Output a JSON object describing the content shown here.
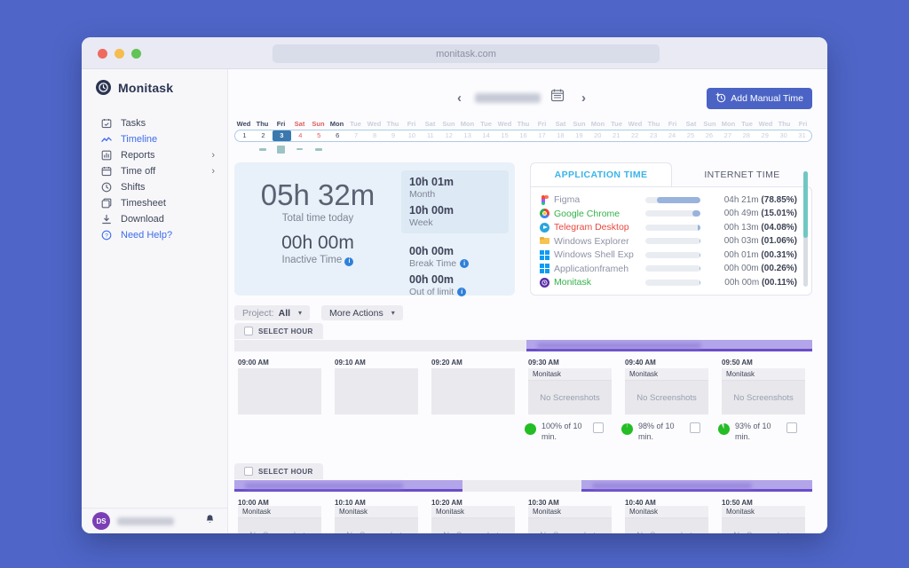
{
  "browser": {
    "url": "monitask.com"
  },
  "colors": {
    "accent_blue": "#4b63c5",
    "purple_bar": "#b3a5e9",
    "purple_border": "#6a4ec6",
    "green_activity": "#24bd24",
    "teal_scrollbar": "#6fc7c3",
    "tab_active_blue": "#3ab4e8",
    "selected_day_blue": "#3a78ae",
    "weekend_red": "#e15b5b",
    "avatar_purple": "#7b3fb5"
  },
  "sidebar": {
    "logo": "Monitask",
    "items": [
      {
        "label": "Tasks",
        "icon": "tasks-icon",
        "active": false,
        "chevron": false,
        "accent": false
      },
      {
        "label": "Timeline",
        "icon": "timeline-icon",
        "active": true,
        "chevron": false,
        "accent": false
      },
      {
        "label": "Reports",
        "icon": "reports-icon",
        "active": false,
        "chevron": true,
        "accent": false
      },
      {
        "label": "Time off",
        "icon": "timeoff-icon",
        "active": false,
        "chevron": true,
        "accent": false
      },
      {
        "label": "Shifts",
        "icon": "shifts-icon",
        "active": false,
        "chevron": false,
        "accent": false
      },
      {
        "label": "Timesheet",
        "icon": "timesheet-icon",
        "active": false,
        "chevron": false,
        "accent": false
      },
      {
        "label": "Download",
        "icon": "download-icon",
        "active": false,
        "chevron": false,
        "accent": false
      },
      {
        "label": "Need Help?",
        "icon": "help-icon",
        "active": false,
        "chevron": false,
        "accent": true
      }
    ],
    "user": {
      "initials": "DS",
      "name_redacted": true
    }
  },
  "header": {
    "add_manual_time": "Add Manual Time",
    "date_redacted": true
  },
  "calendar": {
    "selected": 3,
    "active_through": 6,
    "days": [
      {
        "n": 1,
        "d": "Wed"
      },
      {
        "n": 2,
        "d": "Thu"
      },
      {
        "n": 3,
        "d": "Fri"
      },
      {
        "n": 4,
        "d": "Sat"
      },
      {
        "n": 5,
        "d": "Sun"
      },
      {
        "n": 6,
        "d": "Mon"
      },
      {
        "n": 7,
        "d": "Tue"
      },
      {
        "n": 8,
        "d": "Wed"
      },
      {
        "n": 9,
        "d": "Thu"
      },
      {
        "n": 10,
        "d": "Fri"
      },
      {
        "n": 11,
        "d": "Sat"
      },
      {
        "n": 12,
        "d": "Sun"
      },
      {
        "n": 13,
        "d": "Mon"
      },
      {
        "n": 14,
        "d": "Tue"
      },
      {
        "n": 15,
        "d": "Wed"
      },
      {
        "n": 16,
        "d": "Thu"
      },
      {
        "n": 17,
        "d": "Fri"
      },
      {
        "n": 18,
        "d": "Sat"
      },
      {
        "n": 19,
        "d": "Sun"
      },
      {
        "n": 20,
        "d": "Mon"
      },
      {
        "n": 21,
        "d": "Tue"
      },
      {
        "n": 22,
        "d": "Wed"
      },
      {
        "n": 23,
        "d": "Thu"
      },
      {
        "n": 24,
        "d": "Fri"
      },
      {
        "n": 25,
        "d": "Sat"
      },
      {
        "n": 26,
        "d": "Sun"
      },
      {
        "n": 27,
        "d": "Mon"
      },
      {
        "n": 28,
        "d": "Tue"
      },
      {
        "n": 29,
        "d": "Wed"
      },
      {
        "n": 30,
        "d": "Thu"
      },
      {
        "n": 31,
        "d": "Fri"
      }
    ],
    "marks": [
      {
        "day": 2,
        "w": 8,
        "h": 3
      },
      {
        "day": 3,
        "w": 9,
        "h": 9
      },
      {
        "day": 4,
        "w": 7,
        "h": 2
      },
      {
        "day": 5,
        "w": 8,
        "h": 3
      }
    ]
  },
  "summary": {
    "total": {
      "value": "05h 32m",
      "label": "Total time today"
    },
    "inactive": {
      "value": "00h 00m",
      "label": "Inactive Time"
    },
    "month": {
      "value": "10h 01m",
      "label": "Month"
    },
    "week": {
      "value": "10h 00m",
      "label": "Week"
    },
    "break": {
      "value": "00h 00m",
      "label": "Break Time"
    },
    "out": {
      "value": "00h 00m",
      "label": "Out of limit"
    }
  },
  "apps_panel": {
    "tabs": [
      "APPLICATION TIME",
      "INTERNET TIME"
    ],
    "active_tab": 0,
    "rows": [
      {
        "name": "Figma",
        "icon": "figma-icon",
        "name_color": "#8d93a5",
        "time": "04h 21m",
        "percent": "(78.85%)",
        "pct": 78.85
      },
      {
        "name": "Google Chrome",
        "icon": "chrome-icon",
        "name_color": "#33b249",
        "time": "00h 49m",
        "percent": "(15.01%)",
        "pct": 15.01
      },
      {
        "name": "Telegram Desktop",
        "icon": "telegram-icon",
        "name_color": "#e8473f",
        "time": "00h 13m",
        "percent": "(04.08%)",
        "pct": 4.08
      },
      {
        "name": "Windows Explorer",
        "icon": "folder-icon",
        "name_color": "#8d93a5",
        "time": "00h 03m",
        "percent": "(01.06%)",
        "pct": 1.06
      },
      {
        "name": "Windows Shell Exp",
        "icon": "windows-icon",
        "name_color": "#8d93a5",
        "time": "00h 01m",
        "percent": "(00.31%)",
        "pct": 0.31
      },
      {
        "name": "Applicationframeh",
        "icon": "windows-icon",
        "name_color": "#8d93a5",
        "time": "00h 00m",
        "percent": "(00.26%)",
        "pct": 0.26
      },
      {
        "name": "Monitask",
        "icon": "monitask-icon",
        "name_color": "#33b249",
        "time": "00h 00m",
        "percent": "(00.11%)",
        "pct": 0.11
      }
    ]
  },
  "filters": {
    "project_label": "Project:",
    "project_value": "All",
    "more_actions": "More Actions",
    "select_hour": "SELECT HOUR"
  },
  "hours": [
    {
      "segments": [
        {
          "left_pct": 50.5,
          "width_pct": 49.5,
          "redacted_label": true
        }
      ],
      "slots": [
        {
          "time": "09:00 AM",
          "card": false
        },
        {
          "time": "09:10 AM",
          "card": false
        },
        {
          "time": "09:20 AM",
          "card": false
        },
        {
          "time": "09:30 AM",
          "card": true,
          "app": "Monitask",
          "body": "No Screenshots",
          "activity": {
            "pct": 100,
            "label": "100% of 10 min."
          }
        },
        {
          "time": "09:40 AM",
          "card": true,
          "app": "Monitask",
          "body": "No Screenshots",
          "activity": {
            "pct": 98,
            "label": "98% of 10 min."
          }
        },
        {
          "time": "09:50 AM",
          "card": true,
          "app": "Monitask",
          "body": "No Screenshots",
          "activity": {
            "pct": 93,
            "label": "93% of 10 min."
          }
        }
      ]
    },
    {
      "segments": [
        {
          "left_pct": 0,
          "width_pct": 39.5,
          "redacted_label": true
        },
        {
          "left_pct": 60.1,
          "width_pct": 39.9,
          "redacted_label": true
        }
      ],
      "slots": [
        {
          "time": "10:00 AM",
          "card": true,
          "app": "Monitask",
          "body": "No Screenshots"
        },
        {
          "time": "10:10 AM",
          "card": true,
          "app": "Monitask",
          "body": "No Screenshots"
        },
        {
          "time": "10:20 AM",
          "card": true,
          "app": "Monitask",
          "body": "No Screenshots"
        },
        {
          "time": "10:30 AM",
          "card": true,
          "app": "Monitask",
          "body": "No Screenshots"
        },
        {
          "time": "10:40 AM",
          "card": true,
          "app": "Monitask",
          "body": "No Screenshots"
        },
        {
          "time": "10:50 AM",
          "card": true,
          "app": "Monitask",
          "body": "No Screenshots"
        }
      ]
    }
  ]
}
